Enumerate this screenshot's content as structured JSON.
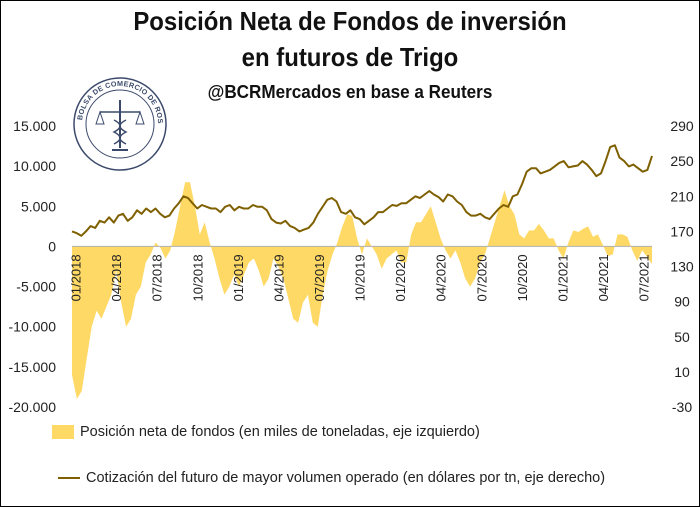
{
  "title_line1": "Posición Neta de Fondos de inversión",
  "title_line2": "en futuros de Trigo",
  "subtitle": "@BCRMercados en base a Reuters",
  "logo_text": "BOLSA DE COMERCIO DE ROSARIO",
  "colors": {
    "area": "#ffd966",
    "line": "#7f6000",
    "axis": "#b0b0b0"
  },
  "chart_data": {
    "type": "area",
    "title": "Posición Neta de Fondos de inversión en futuros de Trigo",
    "subtitle": "@BCRMercados en base a Reuters",
    "left_axis": {
      "ylim": [
        -20000,
        15000
      ],
      "ticks": [
        15000,
        10000,
        5000,
        0,
        -5000,
        -10000,
        -15000,
        -20000
      ],
      "tick_labels": [
        "15.000",
        "10.000",
        "5.000",
        "0",
        "-5.000",
        "-10.000",
        "-15.000",
        "-20.000"
      ]
    },
    "right_axis": {
      "ylim": [
        -30,
        290
      ],
      "ticks": [
        290,
        250,
        210,
        170,
        130,
        90,
        50,
        10,
        -30
      ],
      "tick_labels": [
        "290",
        "250",
        "210",
        "170",
        "130",
        "90",
        "50",
        "10",
        "-30"
      ]
    },
    "x_tick_labels": [
      "01/2018",
      "04/2018",
      "07/2018",
      "10/2018",
      "01/2019",
      "04/2019",
      "07/2019",
      "10/2019",
      "01/2020",
      "04/2020",
      "07/2020",
      "10/2020",
      "01/2021",
      "04/2021",
      "07/2021"
    ],
    "series": [
      {
        "name": "Posición neta de fondos (en miles de toneladas, eje izquierdo)",
        "axis": "left",
        "type": "area",
        "values": [
          -16000,
          -19000,
          -18000,
          -14000,
          -10000,
          -8000,
          -9000,
          -7500,
          -6000,
          -3000,
          -7000,
          -10000,
          -9000,
          -6000,
          -5000,
          -2000,
          -1000,
          500,
          -200,
          -1500,
          -500,
          2000,
          5000,
          8000,
          8000,
          5000,
          1500,
          3000,
          500,
          -1500,
          -4000,
          -6000,
          -5000,
          -3500,
          -5000,
          -3500,
          -2000,
          -1500,
          -3000,
          -5000,
          -4000,
          -1500,
          -2500,
          -4000,
          -6500,
          -9000,
          -9500,
          -7000,
          -6000,
          -9500,
          -10000,
          -6000,
          -3000,
          -1000,
          500,
          2500,
          4000,
          3800,
          1000,
          -1000,
          1000,
          0,
          -1000,
          -2800,
          -1500,
          -1000,
          -500,
          -2000,
          -2000,
          1500,
          3000,
          3000,
          4000,
          5000,
          3000,
          1000,
          -500,
          -1500,
          -500,
          -2000,
          -4000,
          -5000,
          -4000,
          -2000,
          -1000,
          1000,
          3000,
          5000,
          7000,
          5000,
          4000,
          1500,
          1000,
          2000,
          2000,
          2800,
          2000,
          1000,
          1000,
          -500,
          -1500,
          500,
          2000,
          1800,
          2200,
          2500,
          1200,
          1500,
          200,
          -1200,
          -1000,
          1500,
          1500,
          1200,
          -500,
          -1800,
          -500,
          -1300,
          -2200
        ]
      },
      {
        "name": "Cotización del futuro de mayor volumen operado (en dólares por tn, eje derecho)",
        "axis": "right",
        "type": "line",
        "values": [
          170,
          168,
          165,
          170,
          176,
          174,
          182,
          180,
          186,
          180,
          188,
          190,
          182,
          186,
          194,
          190,
          196,
          192,
          196,
          190,
          186,
          188,
          196,
          202,
          210,
          208,
          202,
          196,
          200,
          198,
          196,
          196,
          192,
          198,
          200,
          194,
          198,
          196,
          196,
          200,
          198,
          198,
          194,
          184,
          180,
          179,
          182,
          176,
          174,
          170,
          172,
          174,
          180,
          190,
          198,
          206,
          208,
          204,
          192,
          190,
          194,
          186,
          184,
          178,
          182,
          186,
          192,
          192,
          196,
          200,
          199,
          202,
          202,
          206,
          210,
          208,
          212,
          216,
          212,
          209,
          204,
          212,
          210,
          204,
          200,
          192,
          188,
          188,
          190,
          186,
          184,
          190,
          196,
          200,
          198,
          210,
          212,
          224,
          238,
          242,
          242,
          236,
          238,
          240,
          244,
          248,
          250,
          243,
          244,
          245,
          250,
          246,
          240,
          233,
          236,
          250,
          266,
          268,
          254,
          250,
          244,
          246,
          242,
          238,
          240,
          256
        ]
      }
    ],
    "legend_position": "bottom"
  },
  "legend": {
    "area_label": "Posición neta de fondos (en miles de toneladas, eje izquierdo)",
    "line_label": "Cotización del futuro de mayor volumen operado (en dólares por tn, eje derecho)"
  }
}
